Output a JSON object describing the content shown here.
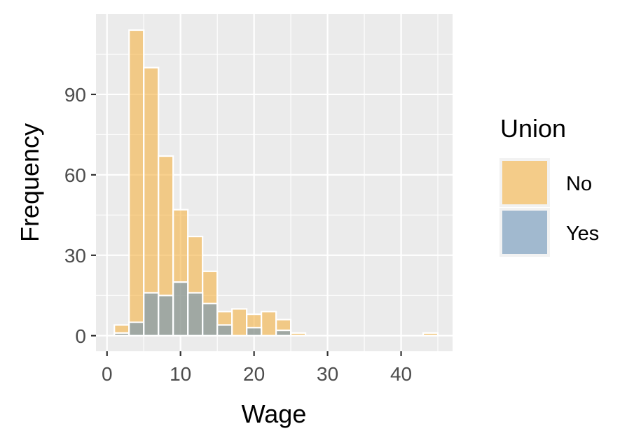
{
  "chart_data": {
    "type": "histogram",
    "xlabel": "Wage",
    "ylabel": "Frequency",
    "xlim": [
      -1.5,
      47
    ],
    "ylim": [
      -5.8,
      120
    ],
    "x_ticks": [
      0,
      10,
      20,
      30,
      40
    ],
    "y_ticks": [
      0,
      30,
      60,
      90
    ],
    "grid": true,
    "bin_width": 2,
    "bin_centers": [
      0,
      2,
      4,
      6,
      8,
      10,
      12,
      14,
      16,
      18,
      20,
      22,
      24,
      26,
      28,
      30,
      32,
      34,
      36,
      38,
      40,
      42,
      44
    ],
    "legend": {
      "title": "Union",
      "placement": "right"
    },
    "series": [
      {
        "name": "No",
        "color": "#F5B342",
        "opacity": 0.6,
        "values": [
          0,
          4,
          114,
          100,
          67,
          47,
          37,
          24,
          9,
          10,
          8,
          9,
          6,
          1,
          0,
          0,
          0,
          0,
          0,
          0,
          0,
          0,
          1
        ]
      },
      {
        "name": "Yes",
        "color": "#6A93B8",
        "opacity": 0.6,
        "values": [
          0,
          1,
          5,
          16,
          15,
          20,
          16,
          12,
          4,
          0,
          3,
          0,
          2,
          0,
          0,
          0,
          0,
          0,
          0,
          0,
          0,
          0,
          0
        ]
      }
    ]
  }
}
